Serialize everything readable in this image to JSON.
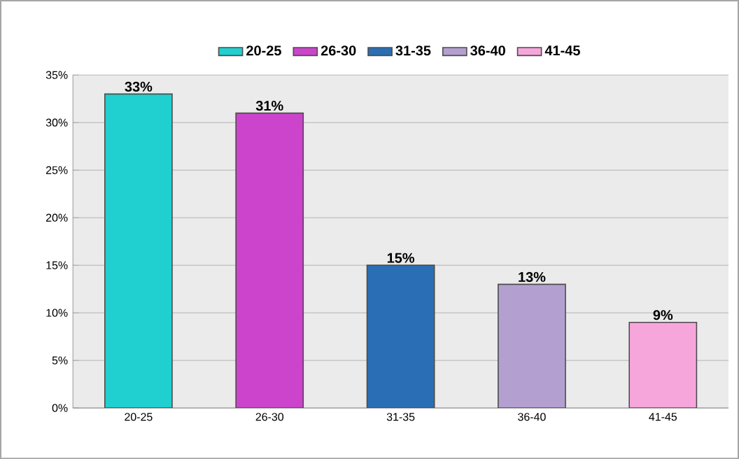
{
  "chart_data": {
    "type": "bar",
    "categories": [
      "20-25",
      "26-30",
      "31-35",
      "36-40",
      "41-45"
    ],
    "series": [
      {
        "name": "20-25",
        "color": "#20d0d0",
        "values": [
          33,
          null,
          null,
          null,
          null
        ],
        "value_labels": [
          "33%",
          null,
          null,
          null,
          null
        ]
      },
      {
        "name": "26-30",
        "color": "#cc44cc",
        "values": [
          null,
          31,
          null,
          null,
          null
        ],
        "value_labels": [
          null,
          "31%",
          null,
          null,
          null
        ]
      },
      {
        "name": "31-35",
        "color": "#2a6fb5",
        "values": [
          null,
          null,
          15,
          null,
          null
        ],
        "value_labels": [
          null,
          null,
          "15%",
          null,
          null
        ]
      },
      {
        "name": "36-40",
        "color": "#b4a0d0",
        "values": [
          null,
          null,
          null,
          13,
          null
        ],
        "value_labels": [
          null,
          null,
          null,
          "13%",
          null
        ]
      },
      {
        "name": "41-45",
        "color": "#f7a6dc",
        "values": [
          null,
          null,
          null,
          null,
          9
        ],
        "value_labels": [
          null,
          null,
          null,
          null,
          "9%"
        ]
      }
    ],
    "ylim": [
      0,
      35
    ],
    "yticks": [
      {
        "value": 0,
        "label": "0%"
      },
      {
        "value": 5,
        "label": "5%"
      },
      {
        "value": 10,
        "label": "10%"
      },
      {
        "value": 15,
        "label": "15%"
      },
      {
        "value": 20,
        "label": "20%"
      },
      {
        "value": 25,
        "label": "25%"
      },
      {
        "value": 30,
        "label": "30%"
      },
      {
        "value": 35,
        "label": "35%"
      }
    ],
    "grid": "y",
    "legend": "top"
  }
}
